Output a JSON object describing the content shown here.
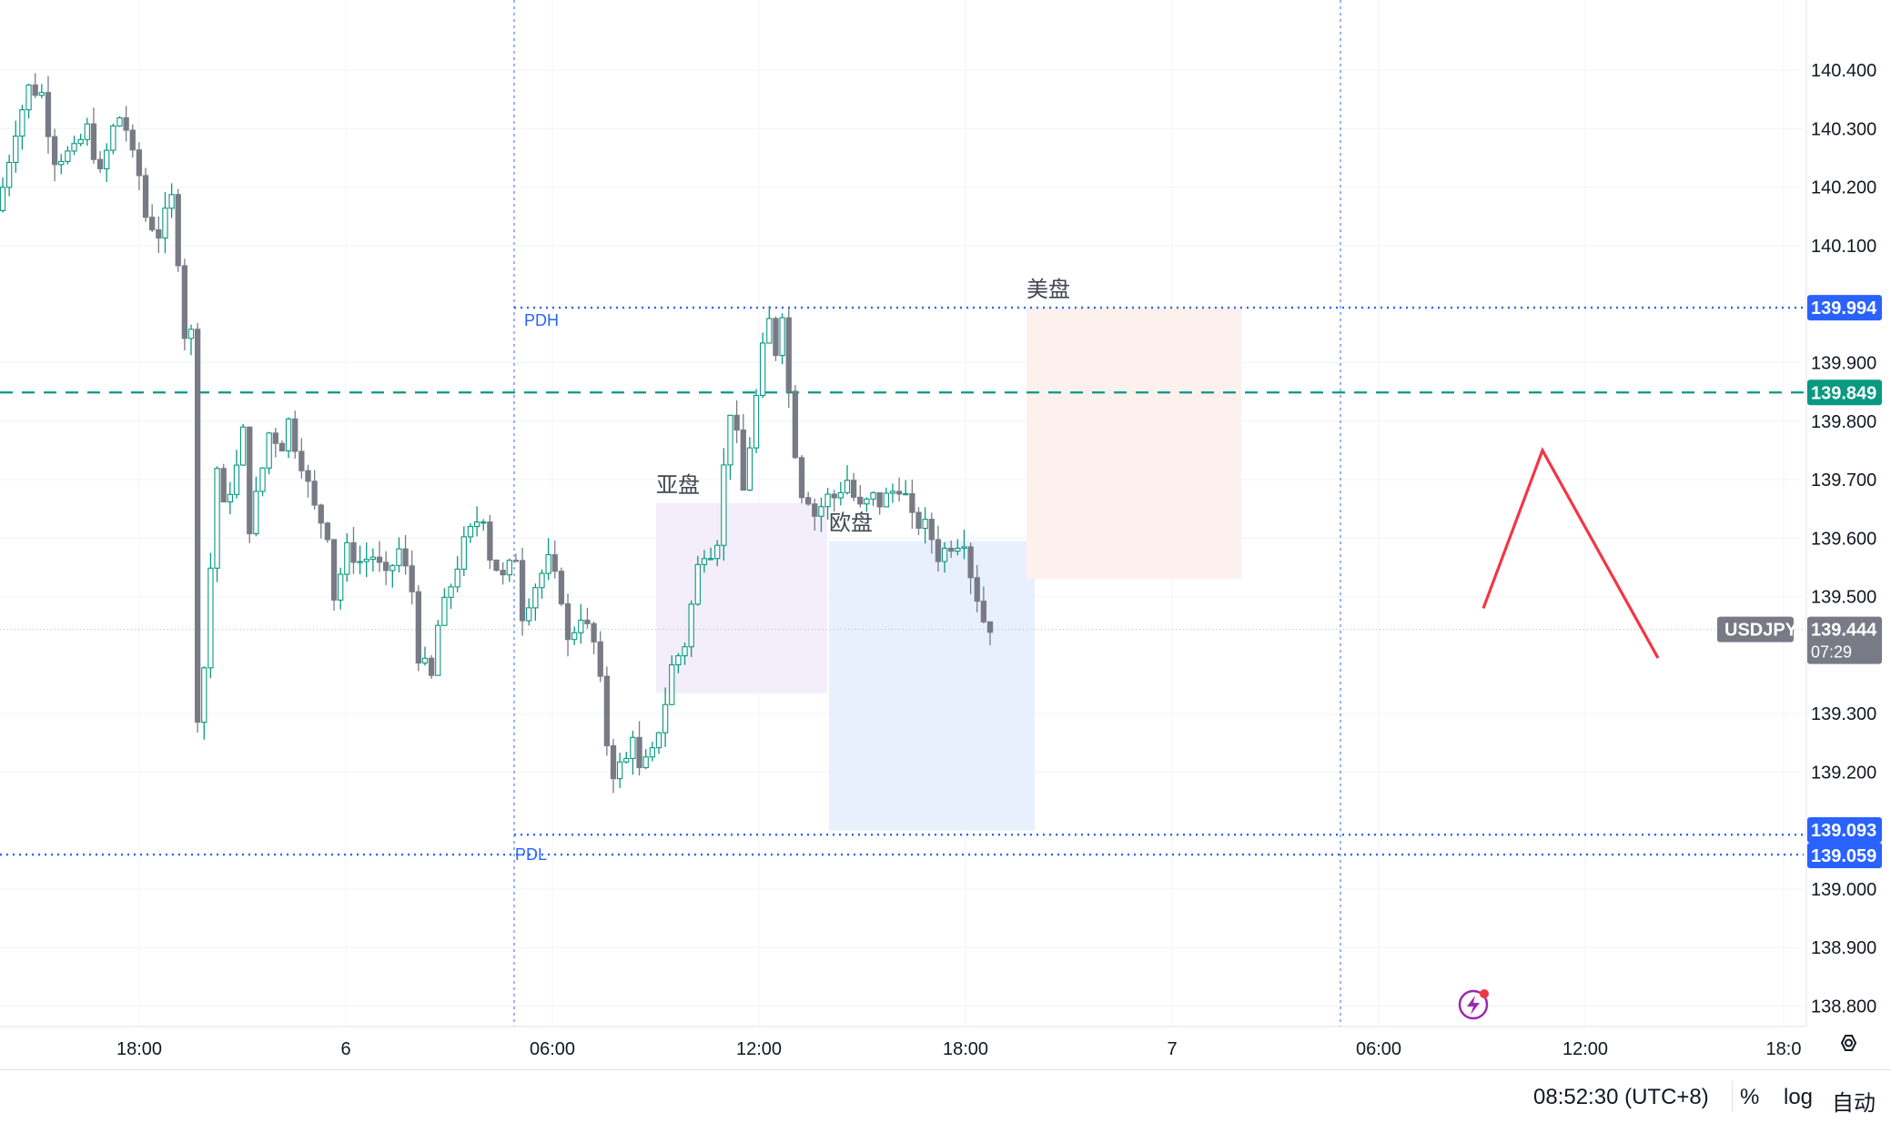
{
  "chart_data": {
    "type": "candlestick",
    "symbol": "USDJPY",
    "y_axis": {
      "range": [
        138.765,
        140.52
      ],
      "ticks": [
        "140.400",
        "140.300",
        "140.200",
        "140.100",
        "139.900",
        "139.800",
        "139.700",
        "139.600",
        "139.500",
        "139.300",
        "139.200",
        "139.000",
        "138.900",
        "138.800"
      ]
    },
    "x_axis": {
      "ticks": [
        "18:00",
        "6",
        "06:00",
        "12:00",
        "18:00",
        "7",
        "06:00",
        "12:00",
        "18:0"
      ]
    },
    "price_tags": [
      {
        "value": "139.994",
        "color": "#2962ff"
      },
      {
        "value": "139.849",
        "color": "#089981"
      },
      {
        "value": "139.093",
        "color": "#2962ff"
      },
      {
        "value": "139.059",
        "color": "#2962ff"
      }
    ],
    "current_price": {
      "symbol": "USDJPY",
      "value": "139.444",
      "countdown": "07:29",
      "color": "#787b86"
    },
    "levels": [
      {
        "label": "PDH",
        "value": 139.994,
        "style": "dotted",
        "color": "#2962ff"
      },
      {
        "label": "PDL",
        "value": 139.093,
        "style": "dotted",
        "color": "#2962ff"
      },
      {
        "label": "",
        "value": 139.059,
        "style": "dotted",
        "color": "#2962ff"
      },
      {
        "label": "",
        "value": 139.849,
        "style": "dashed",
        "color": "#089981"
      }
    ],
    "sessions": [
      {
        "label": "亚盘",
        "price_top": 139.66,
        "price_bottom": 139.335,
        "color": "#f3eefa"
      },
      {
        "label": "欧盘",
        "price_top": 139.595,
        "price_bottom": 139.1,
        "color": "#e8f0fd"
      },
      {
        "label": "美盘",
        "price_top": 139.994,
        "price_bottom": 139.53,
        "color": "#fdf1ee"
      }
    ],
    "projection": {
      "color": "#f23645",
      "points": [
        [
          139.48
        ],
        [
          139.75
        ],
        [
          139.395
        ]
      ]
    },
    "colors": {
      "up": "#089981",
      "down": "#787b86",
      "grid": "#f0f3fa"
    }
  },
  "status": {
    "time": "08:52:30 (UTC+8)",
    "percent": "%",
    "log": "log",
    "auto": "自动"
  },
  "icons": {
    "settings": "gear-icon",
    "flash": "lightning-icon"
  }
}
